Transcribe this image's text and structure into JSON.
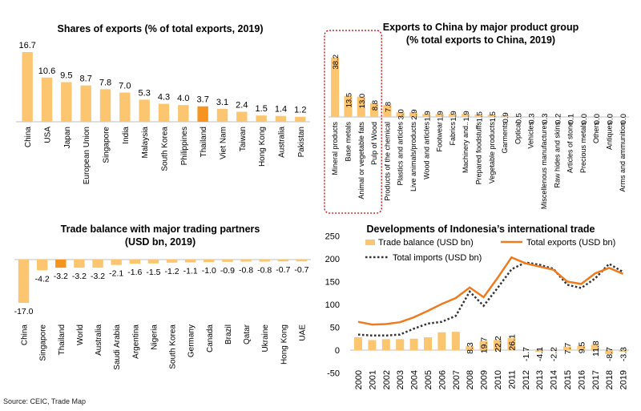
{
  "source": "Source: CEIC, Trade Map",
  "colors": {
    "bar": "#FCC570",
    "highlight": "#F7941D",
    "line": "#F07B1E",
    "dotted": "#333333",
    "axis": "#bfbfbf",
    "dashbox": "#C00000"
  },
  "chart_data": [
    {
      "type": "bar",
      "title": "Shares of exports (% of total exports, 2019)",
      "categories": [
        "China",
        "USA",
        "Japan",
        "European Union",
        "Singapore",
        "India",
        "Malaysia",
        "South Korea",
        "Philippines",
        "Thailand",
        "Viet Nam",
        "Taiwan",
        "Hong Kong",
        "Australia",
        "Pakistan"
      ],
      "values": [
        16.7,
        10.6,
        9.5,
        8.7,
        7.8,
        7.0,
        5.3,
        4.3,
        4.0,
        3.7,
        3.1,
        2.4,
        1.5,
        1.4,
        1.2
      ],
      "labels": [
        "16.7",
        "10.6",
        "9.5",
        "8.7",
        "7.8",
        "7.0",
        "5.3",
        "4.3",
        "4.0",
        "3.7",
        "3.1",
        "2.4",
        "1.5",
        "1.4",
        "1.2"
      ],
      "highlight": "Thailand",
      "ylim": [
        0,
        18
      ]
    },
    {
      "type": "bar",
      "title": "Exports to China by major product group",
      "subtitle": "(% total exports to China, 2019)",
      "categories": [
        "Mineral products",
        "Base metals",
        "Animal or vegetable fats",
        "Pulp of Wood",
        "Products of the chemical",
        "Plastics and articles",
        "Live animals/products",
        "Wood and articles",
        "Footwear",
        "Fabrics",
        "Machinery and..",
        "Prepared foodstuffs",
        "Vegetable products",
        "Garments",
        "Optical",
        "Vehicles",
        "Miscellenous manufactures",
        "Raw hides and skins",
        "Articles of stone",
        "Precious metals",
        "Others",
        "Antiques",
        "Arms and ammunition"
      ],
      "values": [
        38.2,
        13.5,
        13.0,
        8.8,
        7.8,
        3.0,
        2.9,
        1.9,
        1.9,
        1.9,
        1.9,
        1.5,
        1.5,
        0.9,
        0.5,
        0.3,
        0.3,
        0.2,
        0.1,
        0.0,
        0.0,
        0.0,
        0.0
      ],
      "labels": [
        "38.2",
        "13.5",
        "13.0",
        "8.8",
        "7.8",
        "3.0",
        "2.9",
        "1.9",
        "1.9",
        "1.9",
        "1.9",
        "1.5",
        "1.5",
        "0.9",
        "0.5",
        "0.3",
        "0.3",
        "0.2",
        "0.1",
        "0.0",
        "0.0",
        "0.0",
        "0.0"
      ],
      "boxed_groups": 4,
      "ylim": [
        0,
        45
      ]
    },
    {
      "type": "bar",
      "title": "Trade balance with major trading partners",
      "subtitle": "(USD bn, 2019)",
      "categories": [
        "China",
        "Singapore",
        "Thailand",
        "World",
        "Australia",
        "Saudi Arabia",
        "Argentina",
        "Nigeria",
        "South Korea",
        "Germany",
        "Canada",
        "Brazil",
        "Qatar",
        "Ukraine",
        "Hong Kong",
        "UAE"
      ],
      "values": [
        -17.0,
        -4.2,
        -3.2,
        -3.2,
        -3.2,
        -2.1,
        -1.6,
        -1.5,
        -1.2,
        -1.1,
        -1.0,
        -0.9,
        -0.8,
        -0.8,
        -0.7,
        -0.7
      ],
      "labels": [
        "-17.0",
        "-4.2",
        "-3.2",
        "-3.2",
        "-3.2",
        "-2.1",
        "-1.6",
        "-1.5",
        "-1.2",
        "-1.1",
        "-1.0",
        "-0.9",
        "-0.8",
        "-0.8",
        "-0.7",
        "-0.7"
      ],
      "highlight": "Thailand",
      "ylim": [
        -18,
        0
      ]
    },
    {
      "type": "bar+line",
      "title": "Developments of Indonesia’s international trade",
      "categories": [
        "2000",
        "2001",
        "2002",
        "2003",
        "2004",
        "2005",
        "2006",
        "2007",
        "2008",
        "2009",
        "2010",
        "2011",
        "2012",
        "2013",
        "2014",
        "2015",
        "2016",
        "2017",
        "2018",
        "2019"
      ],
      "series": [
        {
          "name": "Trade balance (USD bn)",
          "kind": "bar",
          "values": [
            28,
            22,
            24,
            24,
            25,
            28,
            39,
            40,
            8.3,
            19.7,
            22.2,
            26.1,
            -1.7,
            -4.1,
            -2.2,
            7.7,
            9.5,
            11.8,
            -8.7,
            -3.3
          ]
        },
        {
          "name": "Total exports (USD bn)",
          "kind": "line",
          "values": [
            62,
            56,
            57,
            61,
            72,
            86,
            101,
            114,
            137,
            116,
            158,
            203,
            190,
            183,
            176,
            150,
            145,
            168,
            180,
            167
          ]
        },
        {
          "name": "Total imports (USD bn)",
          "kind": "dotted",
          "values": [
            34,
            32,
            32,
            34,
            47,
            58,
            62,
            75,
            128,
            97,
            136,
            177,
            192,
            187,
            178,
            143,
            136,
            157,
            189,
            171
          ]
        }
      ],
      "bar_labels": [
        "",
        "",
        "",
        "",
        "",
        "",
        "",
        "",
        "8.3",
        "19.7",
        "22.2",
        "26.1",
        "-1.7",
        "-4.1",
        "-2.2",
        "7.7",
        "9.5",
        "11.8",
        "-8.7",
        "-3.3"
      ],
      "yticks": [
        "-50",
        "0",
        "50",
        "100",
        "150",
        "200",
        "250"
      ],
      "ylim": [
        -50,
        250
      ]
    }
  ]
}
